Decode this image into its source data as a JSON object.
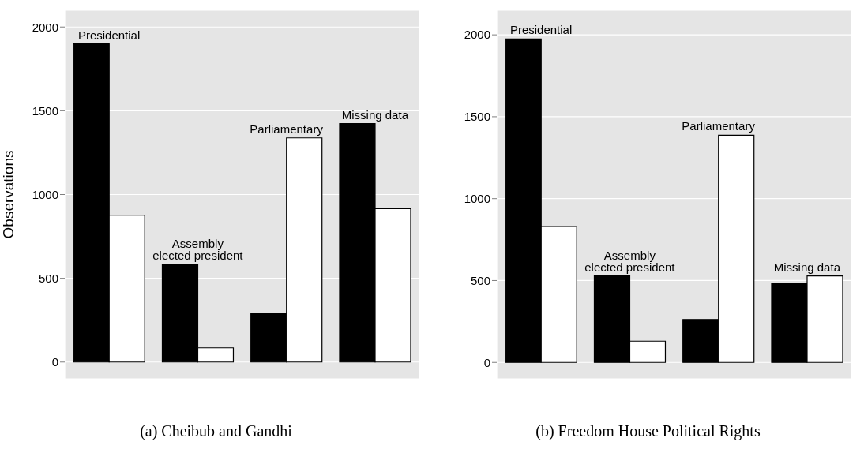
{
  "chart_data": [
    {
      "type": "bar",
      "title": "(a) Cheibub and Gandhi",
      "ylabel": "Observations",
      "categories": [
        null,
        null,
        null,
        null
      ],
      "series": [
        {
          "color": "#000000",
          "values": [
            1899,
            585,
            292,
            1423
          ]
        },
        {
          "color": "#ffffff",
          "values": [
            877,
            85,
            1338,
            916
          ]
        }
      ],
      "annotations": [
        "Presidential",
        "Assembly elected president",
        "Parliamentary",
        "Missing data"
      ],
      "ylim": [
        -100,
        2100
      ],
      "yticks": [
        0,
        500,
        1000,
        1500,
        2000
      ],
      "grid": true,
      "tick_labels": "y"
    },
    {
      "type": "bar",
      "title": "(b) Freedom House Political Rights",
      "categories": [
        null,
        null,
        null,
        null
      ],
      "series": [
        {
          "color": "#000000",
          "values": [
            1975,
            528,
            262,
            485
          ]
        },
        {
          "color": "#ffffff",
          "values": [
            829,
            130,
            1387,
            528
          ]
        }
      ],
      "annotations": [
        "Presidential",
        "Assembly elected president",
        "Parliamentary",
        "Missing data"
      ],
      "ylim": [
        -100,
        2150
      ],
      "yticks": [
        0,
        500,
        1000,
        1500,
        2000
      ],
      "grid": true,
      "tick_labels": "y"
    }
  ]
}
